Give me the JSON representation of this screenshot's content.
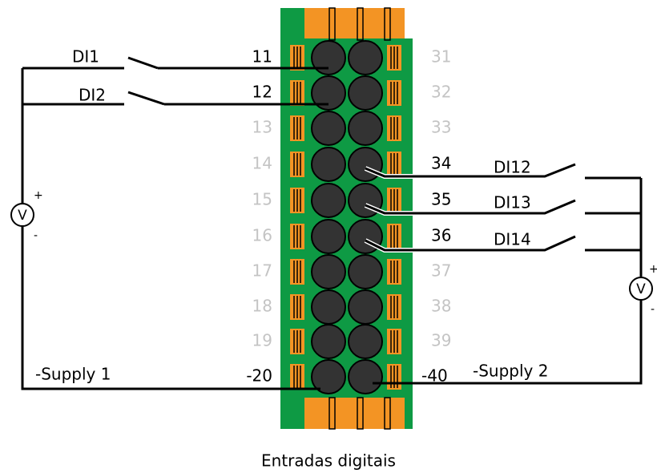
{
  "left_terminals": [
    "11",
    "12",
    "13",
    "14",
    "15",
    "16",
    "17",
    "18",
    "19",
    "-20"
  ],
  "right_terminals": [
    "31",
    "32",
    "33",
    "34",
    "35",
    "36",
    "37",
    "38",
    "39",
    "-40"
  ],
  "switches": {
    "left": [
      "DI1",
      "DI2"
    ],
    "right": [
      "DI12",
      "DI13",
      "DI14"
    ]
  },
  "supplies": [
    "-Supply 1",
    "-Supply 2"
  ],
  "voltmeters": [
    {
      "label": "V",
      "plus": "+",
      "minus": "-"
    },
    {
      "label": "V",
      "plus": "+",
      "minus": "-"
    }
  ],
  "caption": "Entradas digitais"
}
